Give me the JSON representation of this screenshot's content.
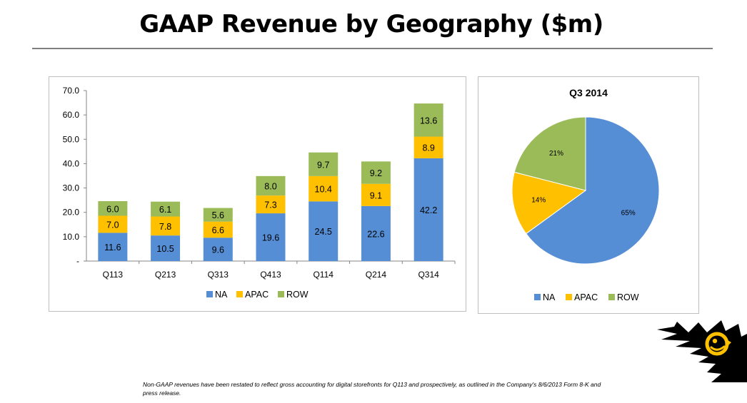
{
  "page": {
    "title": "GAAP Revenue by Geography ($m)",
    "footnote": "Non-GAAP revenues have been restated to reflect gross accounting for digital storefronts for Q113 and prospectively, as outlined in the Company's 8/6/2013 Form 8-K and press release."
  },
  "colors": {
    "NA": "#558ED5",
    "APAC": "#FFC000",
    "ROW": "#9BBB59",
    "logo_bg": "#000000",
    "logo_accent": "#FFC000"
  },
  "chart_data": [
    {
      "type": "bar",
      "stacked": true,
      "title": "",
      "categories": [
        "Q113",
        "Q213",
        "Q313",
        "Q413",
        "Q114",
        "Q214",
        "Q314"
      ],
      "series": [
        {
          "name": "NA",
          "values": [
            11.6,
            10.5,
            9.6,
            19.6,
            24.5,
            22.6,
            42.2
          ]
        },
        {
          "name": "APAC",
          "values": [
            7.0,
            7.8,
            6.6,
            7.3,
            10.4,
            9.1,
            8.9
          ]
        },
        {
          "name": "ROW",
          "values": [
            6.0,
            6.1,
            5.6,
            8.0,
            9.7,
            9.2,
            13.6
          ]
        }
      ],
      "ylim": [
        0,
        70
      ],
      "yticks": [
        "-",
        "10.0",
        "20.0",
        "30.0",
        "40.0",
        "50.0",
        "60.0",
        "70.0"
      ],
      "grid": false,
      "legend": "bottom"
    },
    {
      "type": "pie",
      "title": "Q3 2014",
      "labels": [
        "NA",
        "APAC",
        "ROW"
      ],
      "values": [
        65,
        14,
        21
      ],
      "value_labels": [
        "65%",
        "14%",
        "21%"
      ],
      "legend": "bottom"
    }
  ]
}
